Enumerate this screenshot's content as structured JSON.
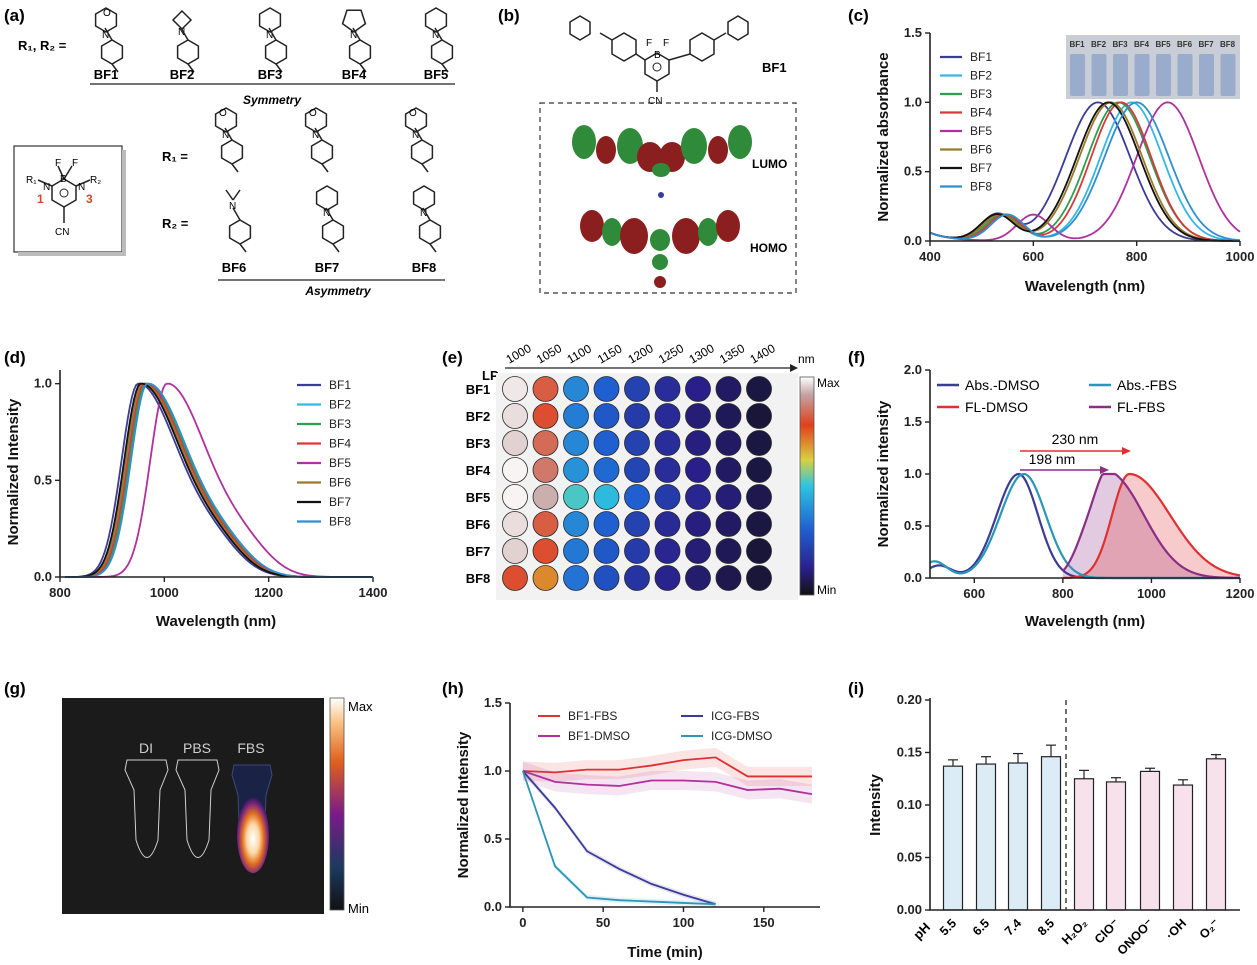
{
  "panel_labels": [
    "(a)",
    "(b)",
    "(c)",
    "(d)",
    "(e)",
    "(f)",
    "(g)",
    "(h)",
    "(i)"
  ],
  "colors": {
    "BF1": "#3b3b98",
    "BF2": "#33b7e6",
    "BF3": "#2e9e4f",
    "BF4": "#d63a3a",
    "BF5": "#b0309e",
    "BF6": "#9a7a2a",
    "BF7": "#111111",
    "BF8": "#2f8fd0",
    "abs_dmso": "#3b3b98",
    "fl_dmso": "#e03030",
    "abs_fbs": "#2a96b8",
    "fl_fbs": "#8a2e86",
    "bar_ph": "#dcecf7",
    "bar_ros": "#f7e1ea"
  },
  "panel_a": {
    "r_label_top": "R₁, R₂ =",
    "symmetry_items": [
      "BF1",
      "BF2",
      "BF3",
      "BF4",
      "BF5"
    ],
    "symmetry_caption": "Symmetry",
    "r1_label": "R₁ =",
    "r2_label": "R₂ =",
    "asymmetry_items": [
      "BF6",
      "BF7",
      "BF8"
    ],
    "asymmetry_caption": "Asymmetry",
    "core": {
      "f": "F",
      "b": "B",
      "n": "N",
      "r1": "R₁",
      "r2": "R₂",
      "pos1": "1",
      "pos3": "3",
      "cn": "CN"
    },
    "atoms": {
      "N": "N",
      "O": "O"
    }
  },
  "panel_b": {
    "compound": "BF1",
    "lumo": "LUMO",
    "homo": "HOMO",
    "core_f": "F",
    "core_b": "B",
    "core_cn": "CN"
  },
  "chart_data": [
    {
      "id": "c",
      "type": "line",
      "xlabel": "Wavelength (nm)",
      "ylabel": "Normalized absorbance",
      "xlim": [
        400,
        1000
      ],
      "ylim": [
        0,
        1.5
      ],
      "xticks": [
        "400",
        "600",
        "800",
        "1000"
      ],
      "yticks": [
        "0.0",
        "0.5",
        "1.0",
        "1.5"
      ],
      "vial_labels": [
        "BF1",
        "BF2",
        "BF3",
        "BF4",
        "BF5",
        "BF6",
        "BF7",
        "BF8"
      ],
      "series": [
        {
          "name": "BF1",
          "peak": 725,
          "width": 88,
          "shoulder": 530
        },
        {
          "name": "BF2",
          "peak": 790,
          "width": 85,
          "shoulder": 545
        },
        {
          "name": "BF3",
          "peak": 765,
          "width": 85,
          "shoulder": 540
        },
        {
          "name": "BF4",
          "peak": 770,
          "width": 82,
          "shoulder": 545
        },
        {
          "name": "BF5",
          "peak": 860,
          "width": 85,
          "shoulder": 600
        },
        {
          "name": "BF6",
          "peak": 750,
          "width": 86,
          "shoulder": 535
        },
        {
          "name": "BF7",
          "peak": 745,
          "width": 86,
          "shoulder": 530
        },
        {
          "name": "BF8",
          "peak": 800,
          "width": 88,
          "shoulder": 550
        }
      ]
    },
    {
      "id": "d",
      "type": "line",
      "xlabel": "Wavelength (nm)",
      "ylabel": "Normalized Intensity",
      "xlim": [
        800,
        1400
      ],
      "ylim": [
        0,
        1.05
      ],
      "xticks": [
        "800",
        "1000",
        "1200",
        "1400"
      ],
      "yticks": [
        "0.0",
        "0.5",
        "1.0"
      ],
      "series": [
        {
          "name": "BF1",
          "peak": 950
        },
        {
          "name": "BF2",
          "peak": 960
        },
        {
          "name": "BF3",
          "peak": 965
        },
        {
          "name": "BF4",
          "peak": 962
        },
        {
          "name": "BF5",
          "peak": 1005
        },
        {
          "name": "BF6",
          "peak": 958
        },
        {
          "name": "BF7",
          "peak": 955
        },
        {
          "name": "BF8",
          "peak": 968
        }
      ]
    },
    {
      "id": "e",
      "type": "heatmap",
      "xlabel": "nm",
      "row_prefix": "LP",
      "columns": [
        "1000",
        "1050",
        "1100",
        "1150",
        "1200",
        "1250",
        "1300",
        "1350",
        "1400"
      ],
      "rows": [
        "BF1",
        "BF2",
        "BF3",
        "BF4",
        "BF5",
        "BF6",
        "BF7",
        "BF8"
      ],
      "scale_max": "Max",
      "scale_min": "Min",
      "intensity": [
        [
          0.98,
          0.82,
          0.38,
          0.3,
          0.22,
          0.16,
          0.12,
          0.08,
          0.05
        ],
        [
          0.97,
          0.8,
          0.36,
          0.28,
          0.2,
          0.15,
          0.1,
          0.07,
          0.04
        ],
        [
          0.96,
          0.84,
          0.38,
          0.3,
          0.22,
          0.16,
          0.11,
          0.08,
          0.05
        ],
        [
          0.99,
          0.86,
          0.4,
          0.32,
          0.23,
          0.16,
          0.12,
          0.08,
          0.05
        ],
        [
          0.99,
          0.93,
          0.52,
          0.48,
          0.3,
          0.2,
          0.14,
          0.1,
          0.06
        ],
        [
          0.97,
          0.82,
          0.38,
          0.3,
          0.22,
          0.15,
          0.11,
          0.08,
          0.05
        ],
        [
          0.96,
          0.8,
          0.35,
          0.28,
          0.2,
          0.14,
          0.1,
          0.07,
          0.04
        ],
        [
          0.8,
          0.7,
          0.34,
          0.26,
          0.18,
          0.13,
          0.09,
          0.06,
          0.04
        ]
      ]
    },
    {
      "id": "f",
      "type": "area",
      "xlabel": "Wavelength (nm)",
      "ylabel": "Normalized intensity",
      "xlim": [
        500,
        1200
      ],
      "ylim": [
        0,
        2.0
      ],
      "xticks": [
        "600",
        "800",
        "1000",
        "1200"
      ],
      "yticks": [
        "0.0",
        "0.5",
        "1.0",
        "1.5",
        "2.0"
      ],
      "series": [
        {
          "name": "Abs.-DMSO",
          "peak": 700
        },
        {
          "name": "FL-DMSO",
          "peak": 950
        },
        {
          "name": "Abs.-FBS",
          "peak": 710
        },
        {
          "name": "FL-FBS",
          "peak": 905
        }
      ],
      "annotations": [
        "230 nm",
        "198 nm"
      ]
    },
    {
      "id": "h",
      "type": "line",
      "xlabel": "Time (min)",
      "ylabel": "Normalized Intensity",
      "xlim": [
        -8,
        185
      ],
      "ylim": [
        0,
        1.5
      ],
      "xticks": [
        "0",
        "50",
        "100",
        "150"
      ],
      "yticks": [
        "0.0",
        "0.5",
        "1.0",
        "1.5"
      ],
      "series": [
        {
          "name": "BF1-FBS",
          "x": [
            0,
            20,
            40,
            60,
            80,
            100,
            120,
            140,
            160,
            180
          ],
          "y": [
            1.0,
            0.99,
            1.01,
            1.01,
            1.04,
            1.08,
            1.1,
            0.96,
            0.96,
            0.96
          ]
        },
        {
          "name": "BF1-DMSO",
          "x": [
            0,
            20,
            40,
            60,
            80,
            100,
            120,
            140,
            160,
            180
          ],
          "y": [
            1.0,
            0.92,
            0.9,
            0.89,
            0.93,
            0.93,
            0.92,
            0.86,
            0.87,
            0.83
          ]
        },
        {
          "name": "ICG-FBS",
          "x": [
            0,
            20,
            40,
            60,
            80,
            100,
            120
          ],
          "y": [
            1.0,
            0.73,
            0.41,
            0.28,
            0.17,
            0.09,
            0.02
          ]
        },
        {
          "name": "ICG-DMSO",
          "x": [
            0,
            20,
            40,
            60,
            80,
            100,
            120
          ],
          "y": [
            1.0,
            0.3,
            0.07,
            0.05,
            0.04,
            0.03,
            0.02
          ]
        }
      ]
    },
    {
      "id": "i",
      "type": "bar",
      "ylabel": "Intensity",
      "ylim": [
        0,
        0.2
      ],
      "yticks": [
        "0.00",
        "0.05",
        "0.10",
        "0.15",
        "0.20"
      ],
      "group_label": "pH",
      "categories": [
        "5.5",
        "6.5",
        "7.4",
        "8.5",
        "H₂O₂",
        "ClO⁻",
        "ONOO⁻",
        "·OH",
        "O₂⁻"
      ],
      "values": [
        0.137,
        0.139,
        0.14,
        0.146,
        0.125,
        0.122,
        0.132,
        0.119,
        0.144
      ],
      "errors": [
        0.006,
        0.007,
        0.009,
        0.011,
        0.008,
        0.004,
        0.003,
        0.005,
        0.004
      ]
    }
  ],
  "panel_g": {
    "tubes": [
      "DI",
      "PBS",
      "FBS"
    ],
    "scale_max": "Max",
    "scale_min": "Min"
  }
}
